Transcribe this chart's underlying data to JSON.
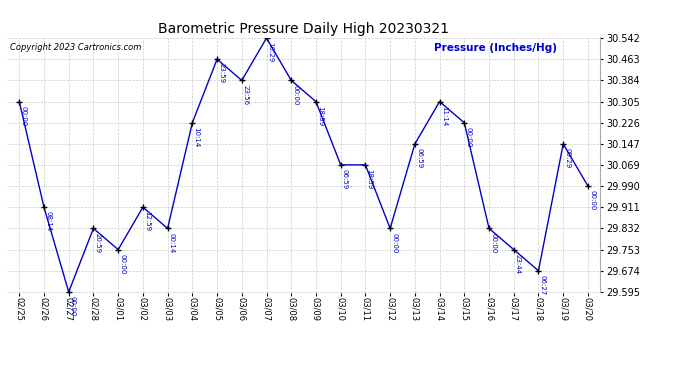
{
  "title": "Barometric Pressure Daily High 20230321",
  "copyright": "Copyright 2023 Cartronics.com",
  "ylabel": "Pressure (Inches/Hg)",
  "dates": [
    "02/25",
    "02/26",
    "02/27",
    "02/28",
    "03/01",
    "03/02",
    "03/03",
    "03/04",
    "03/05",
    "03/06",
    "03/07",
    "03/08",
    "03/09",
    "03/10",
    "03/11",
    "03/12",
    "03/13",
    "03/14",
    "03/15",
    "03/16",
    "03/17",
    "03/18",
    "03/19",
    "03/20"
  ],
  "values": [
    30.305,
    29.911,
    29.595,
    29.832,
    29.753,
    29.911,
    29.832,
    30.226,
    30.463,
    30.384,
    30.542,
    30.384,
    30.305,
    30.069,
    30.069,
    29.832,
    30.147,
    30.305,
    30.226,
    29.832,
    29.753,
    29.674,
    30.147,
    29.99
  ],
  "times": [
    "00:00",
    "08:14",
    "00:00",
    "20:59",
    "00:00",
    "12:59",
    "00:14",
    "10:14",
    "23:59",
    "23:56",
    "10:29",
    "00:00",
    "18:59",
    "06:59",
    "18:59",
    "00:00",
    "06:59",
    "11:14",
    "00:00",
    "00:00",
    "23:44",
    "06:27",
    "09:29",
    "00:00"
  ],
  "ylim_min": 29.595,
  "ylim_max": 30.542,
  "yticks": [
    29.595,
    29.674,
    29.753,
    29.832,
    29.911,
    29.99,
    30.069,
    30.147,
    30.226,
    30.305,
    30.384,
    30.463,
    30.542
  ],
  "line_color": "#0000cc",
  "marker_color": "#000000",
  "text_color": "#0000cc",
  "bg_color": "#ffffff",
  "grid_color": "#cccccc",
  "title_color": "#000000",
  "copyright_color": "#000000",
  "ylabel_color": "#0000cc",
  "figwidth": 6.9,
  "figheight": 3.75,
  "dpi": 100
}
